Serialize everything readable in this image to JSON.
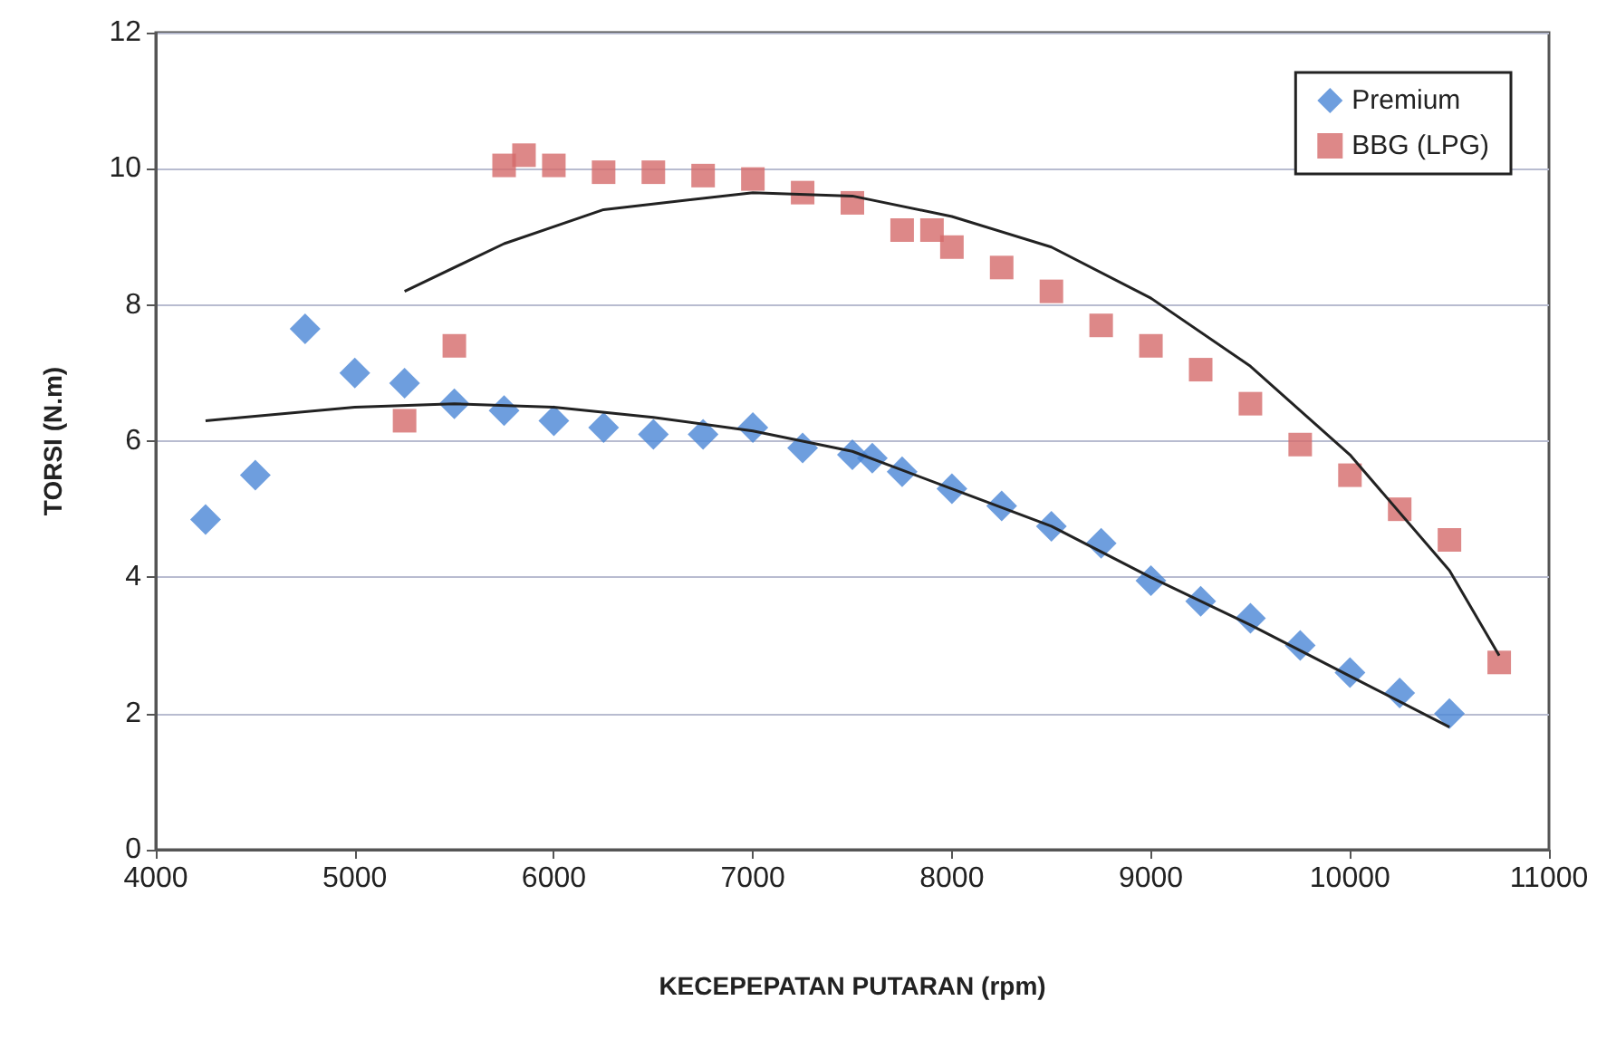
{
  "chart_data": {
    "type": "scatter",
    "xlabel": "KECEPEPATAN PUTARAN (rpm)",
    "ylabel": "TORSI (N.m)",
    "xlim": [
      4000,
      11000
    ],
    "xticks": [
      4000,
      5000,
      6000,
      7000,
      8000,
      9000,
      10000,
      11000
    ],
    "ylim": [
      0,
      12
    ],
    "yticks": [
      0,
      2,
      4,
      6,
      8,
      10,
      12
    ],
    "grid": "y",
    "legend": "top right",
    "series": [
      {
        "name": "Premium",
        "color": "#4a86d6",
        "marker": "diamond",
        "x": [
          4250,
          4500,
          4750,
          5000,
          5250,
          5500,
          5750,
          6000,
          6250,
          6500,
          6750,
          7000,
          7250,
          7500,
          7600,
          7750,
          8000,
          8250,
          8500,
          8750,
          9000,
          9250,
          9500,
          9750,
          10000,
          10250,
          10500
        ],
        "values": [
          4.85,
          5.5,
          7.65,
          7.0,
          6.85,
          6.55,
          6.45,
          6.3,
          6.2,
          6.1,
          6.1,
          6.2,
          5.9,
          5.8,
          5.75,
          5.55,
          5.3,
          5.05,
          4.75,
          4.5,
          3.95,
          3.65,
          3.4,
          3.0,
          2.6,
          2.3,
          2.0
        ]
      },
      {
        "name": "BBG (LPG)",
        "color": "#d46a6a",
        "marker": "square",
        "x": [
          5250,
          5500,
          5750,
          5850,
          6000,
          6250,
          6500,
          6750,
          7000,
          7250,
          7500,
          7750,
          7900,
          8000,
          8250,
          8500,
          8750,
          9000,
          9250,
          9500,
          9750,
          10000,
          10250,
          10500,
          10750
        ],
        "values": [
          6.3,
          7.4,
          10.05,
          10.2,
          10.05,
          9.95,
          9.95,
          9.9,
          9.85,
          9.65,
          9.5,
          9.1,
          9.1,
          8.85,
          8.55,
          8.2,
          7.7,
          7.4,
          7.05,
          6.55,
          5.95,
          5.5,
          5.0,
          4.55,
          2.75
        ]
      },
      {
        "type": "line",
        "color": "#222222",
        "marker": "none",
        "x": [
          4250,
          5000,
          5500,
          6000,
          6500,
          7000,
          7500,
          8000,
          8500,
          9000,
          9500,
          10000,
          10500
        ],
        "values": [
          6.3,
          6.5,
          6.55,
          6.5,
          6.35,
          6.15,
          5.85,
          5.3,
          4.75,
          4.0,
          3.3,
          2.55,
          1.8
        ]
      },
      {
        "type": "line",
        "color": "#222222",
        "marker": "none",
        "x": [
          5250,
          5750,
          6250,
          7000,
          7500,
          8000,
          8500,
          9000,
          9500,
          10000,
          10500,
          10750
        ],
        "values": [
          8.2,
          8.9,
          9.4,
          9.65,
          9.6,
          9.3,
          8.85,
          8.1,
          7.1,
          5.8,
          4.1,
          2.85
        ]
      }
    ]
  }
}
